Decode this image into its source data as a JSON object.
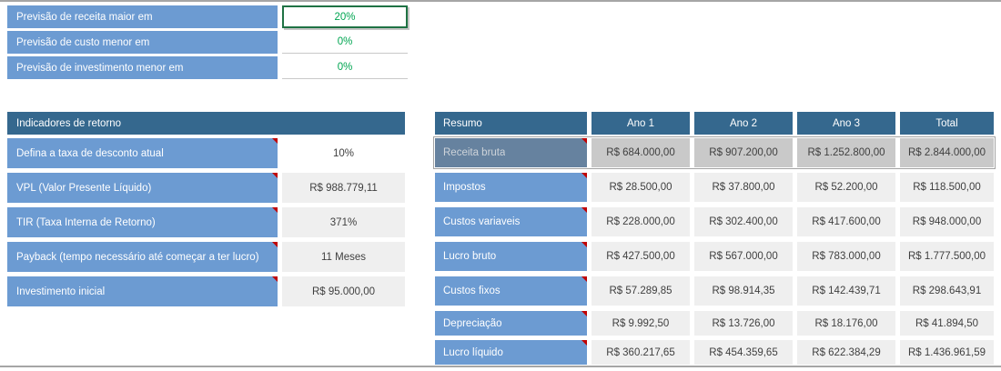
{
  "colors": {
    "label_blue": "#6C9BD2",
    "header_blue": "#35688E",
    "value_bg": "#EFEFEF",
    "selected_cell_bg": "#C9C9C9",
    "selected_label_bg": "#66829F",
    "selected_label_text": "#CDD3D9",
    "green_text": "#00A551",
    "green_border": "#1F7244",
    "comment_red": "#C00000",
    "divider": "#A6A6A6",
    "cell_text": "#3F3F3F"
  },
  "assumptions": {
    "rows": [
      {
        "label": "Previsão de receita maior em",
        "value": "20%",
        "selected": true
      },
      {
        "label": "Previsão de custo menor em",
        "value": "0%",
        "selected": false
      },
      {
        "label": "Previsão de investimento menor em",
        "value": "0%",
        "selected": false
      }
    ]
  },
  "indicators": {
    "header": "Indicadores de retorno",
    "rows": [
      {
        "label": "Defina a taxa de desconto atual",
        "value": "10%",
        "white_value": true,
        "comment": true
      },
      {
        "label": "VPL (Valor Presente Líquido)",
        "value": "R$ 988.779,11",
        "white_value": false,
        "comment": true
      },
      {
        "label": "TIR (Taxa Interna de Retorno)",
        "value": "371%",
        "white_value": false,
        "comment": true
      },
      {
        "label": "Payback (tempo necessário até começar a ter lucro)",
        "value": "11 Meses",
        "white_value": false,
        "comment": true
      },
      {
        "label": "Investimento inicial",
        "value": "R$ 95.000,00",
        "white_value": false,
        "comment": true
      }
    ]
  },
  "summary": {
    "header_label": "Resumo",
    "columns": [
      "Ano 1",
      "Ano 2",
      "Ano 3",
      "Total"
    ],
    "rows": [
      {
        "label": "Receita bruta",
        "values": [
          "R$ 684.000,00",
          "R$ 907.200,00",
          "R$ 1.252.800,00",
          "R$ 2.844.000,00"
        ],
        "selected": true,
        "comment": true
      },
      {
        "label": "Impostos",
        "values": [
          "R$ 28.500,00",
          "R$ 37.800,00",
          "R$ 52.200,00",
          "R$ 118.500,00"
        ],
        "selected": false,
        "comment": true
      },
      {
        "label": "Custos variaveis",
        "values": [
          "R$ 228.000,00",
          "R$ 302.400,00",
          "R$ 417.600,00",
          "R$ 948.000,00"
        ],
        "selected": false,
        "comment": true
      },
      {
        "label": "Lucro bruto",
        "values": [
          "R$ 427.500,00",
          "R$ 567.000,00",
          "R$ 783.000,00",
          "R$ 1.777.500,00"
        ],
        "selected": false,
        "comment": true
      },
      {
        "label": "Custos fixos",
        "values": [
          "R$ 57.289,85",
          "R$ 98.914,35",
          "R$ 142.439,71",
          "R$ 298.643,91"
        ],
        "selected": false,
        "comment": true
      },
      {
        "label": "Depreciação",
        "values": [
          "R$ 9.992,50",
          "R$ 13.726,00",
          "R$ 18.176,00",
          "R$ 41.894,50"
        ],
        "selected": false,
        "comment": true
      },
      {
        "label": "Lucro líquido",
        "values": [
          "R$ 360.217,65",
          "R$ 454.359,65",
          "R$ 622.384,29",
          "R$ 1.436.961,59"
        ],
        "selected": false,
        "comment": true
      }
    ]
  }
}
